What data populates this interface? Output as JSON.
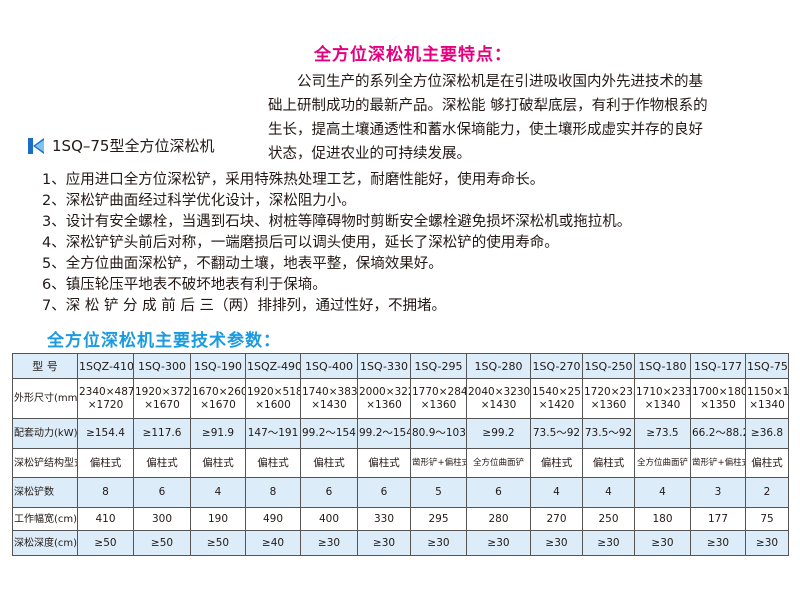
{
  "title": "全方位深松机主要特点：",
  "intro_lines": [
    "　　公司生产的系列全方位深松机是在引进吸收国内外先进技术的基",
    "础上研制成功的最新产品。深松能 够打破犁底层，有利于作物根系的",
    "生长，提高土壤通透性和蓄水保墒能力，使土壤形成虚实并存的良好",
    "状态，促进农业的可持续发展。"
  ],
  "model_title": "1SQ–75型全方位深松机",
  "features": [
    "1、应用进口全方位深松铲，采用特殊热处理工艺，耐磨性能好，使用寿命长。",
    "2、深松铲曲面经过科学优化设计，深松阻力小。",
    "3、设计有安全螺栓，当遇到石块、树桩等障碍物时剪断安全螺栓避免损坏深松机或拖拉机。",
    "4、深松铲铲头前后对称，一端磨损后可以调头使用，延长了深松铲的使用寿命。",
    "5、全方位曲面深松铲，不翻动土壤，地表平整，保墒效果好。",
    "6、镇压轮压平地表不破坏地表有利于保墒。",
    "7、深 松 铲 分 成 前 后 三（两）排排列，通过性好，不拥堵。"
  ],
  "params_title": "全方位深松机主要技术参数：",
  "colors": {
    "title": "#e4007f",
    "params": "#1a9be0",
    "row_shade": "#dcedf9",
    "logo": "#1a6fc4"
  },
  "table": {
    "rows": [
      {
        "label": "型 号",
        "cells": [
          "1SQZ-410",
          "1SQ-300",
          "1SQ-190",
          "1SQZ-490",
          "1SQ-400",
          "1SQ-330",
          "1SQ-295",
          "1SQ-280",
          "1SQ-270",
          "1SQ-250",
          "1SQ-180",
          "1SQ-177",
          "1SQ-75"
        ]
      },
      {
        "label": "外形尺寸(mm)",
        "cells": [
          "2340×4870\n×1720",
          "1920×3720\n×1670",
          "1670×2600\n×1670",
          "1920×5180\n×1600",
          "1740×3830\n×1430",
          "2000×3220\n×1360",
          "1770×2840\n×1360",
          "2040×3230\n×1430",
          "1540×2570\n×1420",
          "1720×2350\n×1360",
          "1710×2330\n×1340",
          "1700×1800\n×1350",
          "1150×1350\n×1340"
        ]
      },
      {
        "label": "配套动力(kW)",
        "cells": [
          "≥154.4",
          "≥117.6",
          "≥91.9",
          "147～191",
          "99.2～154.4",
          "99.2～154.4",
          "80.9～103",
          "≥99.2",
          "73.5～92",
          "73.5～92",
          "≥73.5",
          "66.2～88.2",
          "≥36.8"
        ]
      },
      {
        "label": "深松铲结构型式",
        "cells": [
          "偏柱式",
          "偏柱式",
          "偏柱式",
          "偏柱式",
          "偏柱式",
          "偏柱式",
          "凿形铲+偏柱式",
          "全方位曲面铲",
          "偏柱式",
          "偏柱式",
          "全方位曲面铲",
          "凿形铲+偏柱式",
          "偏柱式"
        ]
      },
      {
        "label": "深松铲数",
        "cells": [
          "8",
          "6",
          "4",
          "8",
          "6",
          "6",
          "5",
          "6",
          "4",
          "4",
          "4",
          "3",
          "2"
        ]
      },
      {
        "label": "工作幅宽(cm)",
        "cells": [
          "410",
          "300",
          "190",
          "490",
          "400",
          "330",
          "295",
          "280",
          "270",
          "250",
          "180",
          "177",
          "75"
        ]
      },
      {
        "label": "深松深度(cm)",
        "cells": [
          "≥50",
          "≥50",
          "≥50",
          "≥40",
          "≥30",
          "≥30",
          "≥30",
          "≥30",
          "≥30",
          "≥30",
          "≥30",
          "≥30",
          "≥30"
        ]
      }
    ]
  }
}
